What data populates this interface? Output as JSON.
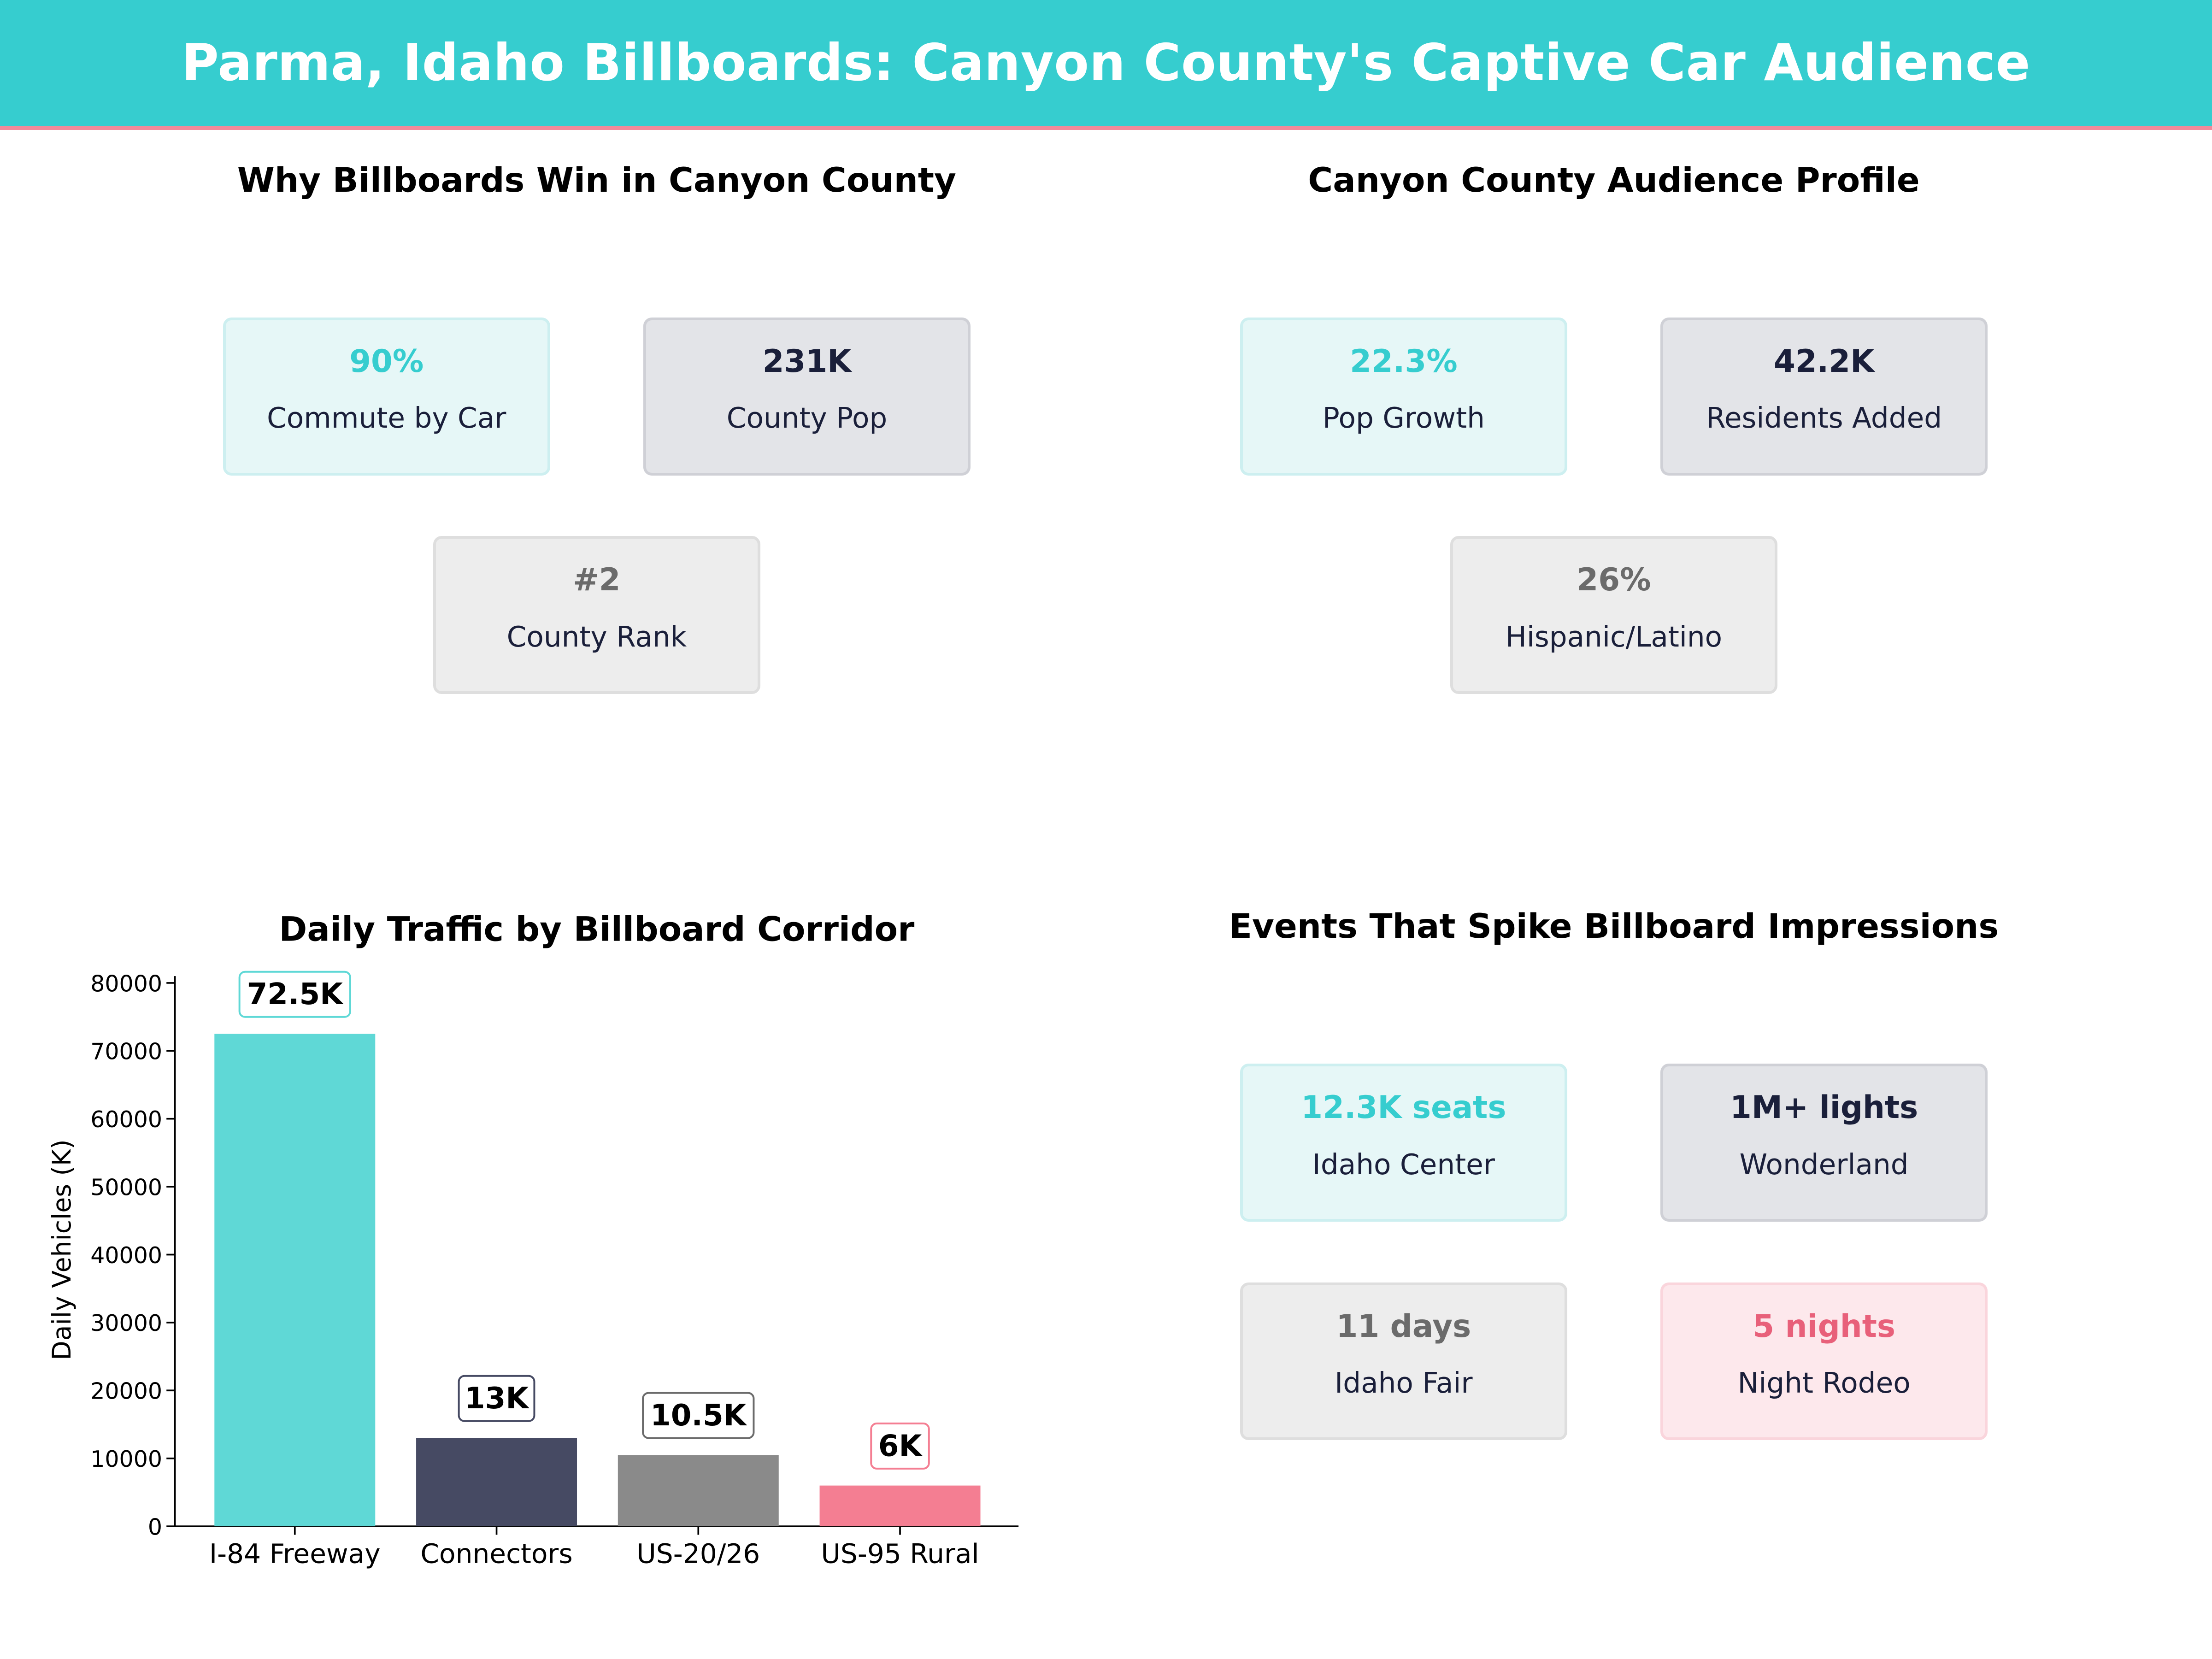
{
  "header": {
    "title": "Parma, Idaho Billboards: Canyon County's Captive Car Audience"
  },
  "panels": {
    "why": {
      "title": "Why Billboards Win in Canyon County",
      "cards": [
        {
          "value": "90%",
          "label": "Commute by Car",
          "theme": "teal"
        },
        {
          "value": "231K",
          "label": "County Pop",
          "theme": "navy"
        },
        {
          "value": "#2",
          "label": "County Rank",
          "theme": "gray"
        }
      ]
    },
    "audience": {
      "title": "Canyon County Audience Profile",
      "cards": [
        {
          "value": "22.3%",
          "label": "Pop Growth",
          "theme": "teal"
        },
        {
          "value": "42.2K",
          "label": "Residents Added",
          "theme": "navy"
        },
        {
          "value": "26%",
          "label": "Hispanic/Latino",
          "theme": "gray"
        }
      ]
    },
    "events": {
      "title": "Events That Spike Billboard Impressions",
      "cards": [
        {
          "value": "12.3K seats",
          "label": "Idaho Center",
          "theme": "teal"
        },
        {
          "value": "1M+ lights",
          "label": "Wonderland",
          "theme": "navy"
        },
        {
          "value": "11 days",
          "label": "Idaho Fair",
          "theme": "gray"
        },
        {
          "value": "5 nights",
          "label": "Night Rodeo",
          "theme": "pink"
        }
      ]
    }
  },
  "colors": {
    "teal": "#5fd8d6",
    "navy": "#464a63",
    "gray": "#8a8a8a",
    "pink": "#f47e92",
    "banner": "#36cdcf",
    "banner_rule": "#f28a9a"
  },
  "chart_data": {
    "type": "bar",
    "title": "Daily Traffic by Billboard Corridor",
    "ylabel": "Daily Vehicles (K)",
    "xlabel": "",
    "categories": [
      "I-84 Freeway",
      "Connectors",
      "US-20/26",
      "US-95 Rural"
    ],
    "values": [
      72500,
      13000,
      10500,
      6000
    ],
    "data_labels": [
      "72.5K",
      "13K",
      "10.5K",
      "6K"
    ],
    "bar_colors": [
      "#5fd8d6",
      "#464a63",
      "#8a8a8a",
      "#f47e92"
    ],
    "label_border_colors": [
      "#5fd8d6",
      "#464a63",
      "#6b6b6b",
      "#f47e92"
    ],
    "ylim": [
      0,
      81000
    ],
    "yticks": [
      0,
      10000,
      20000,
      30000,
      40000,
      50000,
      60000,
      70000,
      80000
    ],
    "grid": false
  }
}
